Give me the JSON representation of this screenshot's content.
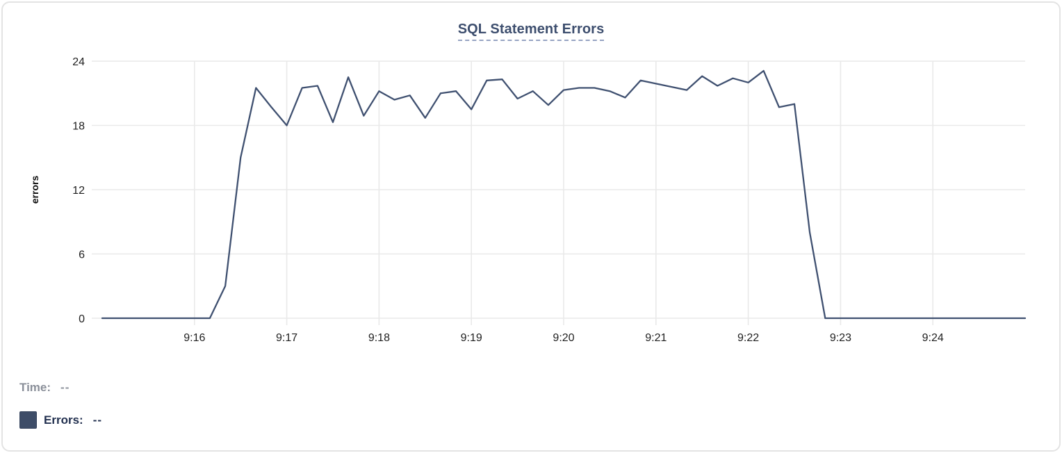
{
  "chart": {
    "title": "SQL Statement Errors",
    "y_axis_title": "errors",
    "readout": {
      "time_label": "Time:",
      "time_value": "--",
      "errors_label": "Errors:",
      "errors_value": "--"
    },
    "colors": {
      "line": "#3f5070",
      "title": "#3d4e6e",
      "underline": "#96a3c2",
      "swatch": "#3e4d68",
      "errors_text": "#22304f",
      "muted_text": "#8a8f99",
      "tick_text": "#1e1e1e",
      "grid": "#e9e9e9",
      "card_border": "#e3e3e3"
    }
  },
  "chart_data": {
    "type": "line",
    "title": "SQL Statement Errors",
    "xlabel": "",
    "ylabel": "errors",
    "grid": true,
    "legend_position": "bottom-left",
    "x_start": "9:15:00",
    "x_end": "9:25:00",
    "x_span_minutes": 10,
    "x_interval_seconds": 10,
    "x_tick_labels": [
      "9:16",
      "9:17",
      "9:18",
      "9:19",
      "9:20",
      "9:21",
      "9:22",
      "9:23",
      "9:24"
    ],
    "x_tick_minutes": [
      1,
      2,
      3,
      4,
      5,
      6,
      7,
      8,
      9
    ],
    "y_ticks": [
      0,
      6,
      12,
      18,
      24
    ],
    "ylim": [
      0,
      24
    ],
    "series": [
      {
        "name": "Errors",
        "values": [
          0,
          0,
          0,
          0,
          0,
          0,
          0,
          0,
          3,
          15,
          21.5,
          19.7,
          18,
          21.5,
          21.7,
          18.3,
          22.5,
          18.9,
          21.2,
          20.4,
          20.8,
          18.7,
          21.0,
          21.2,
          19.5,
          22.2,
          22.3,
          20.5,
          21.2,
          19.9,
          21.3,
          21.5,
          21.5,
          21.2,
          20.6,
          22.2,
          21.9,
          21.6,
          21.3,
          22.6,
          21.7,
          22.4,
          22.0,
          23.1,
          19.7,
          20.0,
          8,
          0,
          0,
          0,
          0,
          0,
          0,
          0,
          0,
          0,
          0,
          0,
          0,
          0,
          0
        ]
      }
    ]
  }
}
